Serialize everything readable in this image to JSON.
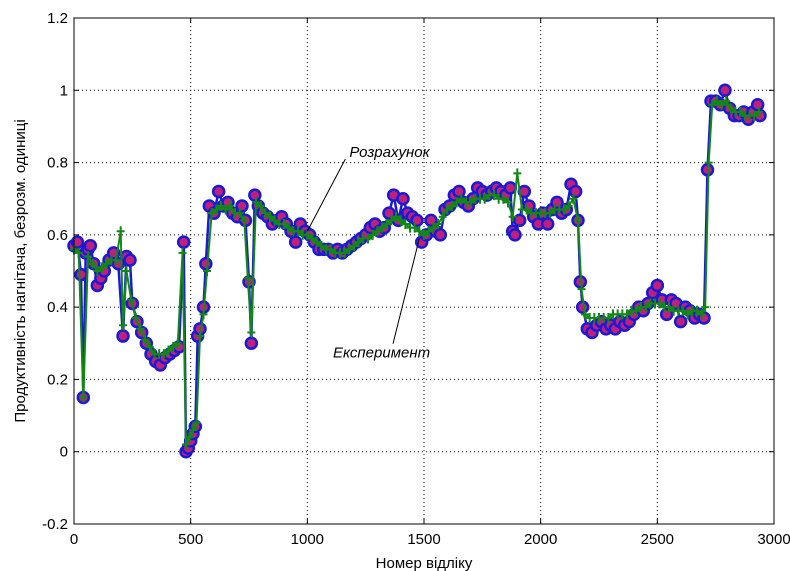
{
  "chart_data": {
    "type": "line",
    "title": "",
    "xlabel": "Номер відліку",
    "ylabel": "Продуктивність нагнітача, безрозм. одиниці",
    "xlim": [
      0,
      3000
    ],
    "ylim": [
      -0.2,
      1.2
    ],
    "grid": true,
    "x_ticks": [
      "0",
      "500",
      "1000",
      "1500",
      "2000",
      "2500",
      "3000"
    ],
    "y_ticks": [
      "-0.2",
      "0",
      "0.2",
      "0.4",
      "0.6",
      "0.8",
      "1",
      "1.2"
    ],
    "x_tick_values": [
      0,
      500,
      1000,
      1500,
      2000,
      2500,
      3000
    ],
    "y_tick_values": [
      -0.2,
      0,
      0.2,
      0.4,
      0.6,
      0.8,
      1.0,
      1.2
    ],
    "annotations": [
      {
        "text": "Розрахунок",
        "x": 1180,
        "y": 0.815,
        "arrow_to_x": 1000,
        "arrow_to_y": 0.61
      },
      {
        "text": "Експеримент",
        "x": 1110,
        "y": 0.26,
        "arrow_to_x": 1480,
        "arrow_to_y": 0.59
      }
    ],
    "series": [
      {
        "name": "Розрахунок",
        "color": "#1a1ad6",
        "marker": "o",
        "points": [
          [
            0,
            0.57
          ],
          [
            15,
            0.58
          ],
          [
            30,
            0.49
          ],
          [
            40,
            0.15
          ],
          [
            50,
            0.55
          ],
          [
            60,
            0.56
          ],
          [
            70,
            0.57
          ],
          [
            85,
            0.52
          ],
          [
            100,
            0.46
          ],
          [
            115,
            0.48
          ],
          [
            130,
            0.5
          ],
          [
            150,
            0.53
          ],
          [
            170,
            0.55
          ],
          [
            190,
            0.52
          ],
          [
            210,
            0.32
          ],
          [
            225,
            0.54
          ],
          [
            240,
            0.53
          ],
          [
            250,
            0.41
          ],
          [
            270,
            0.36
          ],
          [
            290,
            0.33
          ],
          [
            310,
            0.3
          ],
          [
            330,
            0.27
          ],
          [
            350,
            0.25
          ],
          [
            370,
            0.24
          ],
          [
            390,
            0.26
          ],
          [
            410,
            0.27
          ],
          [
            430,
            0.28
          ],
          [
            450,
            0.29
          ],
          [
            470,
            0.58
          ],
          [
            480,
            0.0
          ],
          [
            490,
            0.01
          ],
          [
            500,
            0.03
          ],
          [
            510,
            0.05
          ],
          [
            520,
            0.07
          ],
          [
            530,
            0.32
          ],
          [
            540,
            0.34
          ],
          [
            555,
            0.4
          ],
          [
            565,
            0.52
          ],
          [
            580,
            0.68
          ],
          [
            600,
            0.66
          ],
          [
            620,
            0.72
          ],
          [
            640,
            0.68
          ],
          [
            660,
            0.69
          ],
          [
            680,
            0.66
          ],
          [
            700,
            0.65
          ],
          [
            720,
            0.68
          ],
          [
            735,
            0.64
          ],
          [
            750,
            0.47
          ],
          [
            760,
            0.3
          ],
          [
            775,
            0.71
          ],
          [
            790,
            0.68
          ],
          [
            810,
            0.66
          ],
          [
            830,
            0.65
          ],
          [
            850,
            0.63
          ],
          [
            870,
            0.64
          ],
          [
            890,
            0.65
          ],
          [
            910,
            0.63
          ],
          [
            930,
            0.61
          ],
          [
            950,
            0.58
          ],
          [
            970,
            0.63
          ],
          [
            990,
            0.61
          ],
          [
            1010,
            0.6
          ],
          [
            1030,
            0.58
          ],
          [
            1050,
            0.56
          ],
          [
            1070,
            0.56
          ],
          [
            1090,
            0.56
          ],
          [
            1110,
            0.55
          ],
          [
            1130,
            0.56
          ],
          [
            1150,
            0.55
          ],
          [
            1170,
            0.56
          ],
          [
            1190,
            0.57
          ],
          [
            1210,
            0.58
          ],
          [
            1230,
            0.59
          ],
          [
            1250,
            0.6
          ],
          [
            1270,
            0.62
          ],
          [
            1290,
            0.63
          ],
          [
            1310,
            0.61
          ],
          [
            1330,
            0.62
          ],
          [
            1350,
            0.66
          ],
          [
            1370,
            0.71
          ],
          [
            1390,
            0.64
          ],
          [
            1410,
            0.7
          ],
          [
            1430,
            0.66
          ],
          [
            1450,
            0.65
          ],
          [
            1470,
            0.64
          ],
          [
            1490,
            0.58
          ],
          [
            1510,
            0.6
          ],
          [
            1530,
            0.64
          ],
          [
            1550,
            0.61
          ],
          [
            1570,
            0.6
          ],
          [
            1590,
            0.67
          ],
          [
            1610,
            0.68
          ],
          [
            1630,
            0.71
          ],
          [
            1650,
            0.72
          ],
          [
            1670,
            0.69
          ],
          [
            1690,
            0.68
          ],
          [
            1710,
            0.7
          ],
          [
            1730,
            0.73
          ],
          [
            1750,
            0.72
          ],
          [
            1770,
            0.71
          ],
          [
            1790,
            0.72
          ],
          [
            1810,
            0.73
          ],
          [
            1830,
            0.72
          ],
          [
            1850,
            0.71
          ],
          [
            1870,
            0.73
          ],
          [
            1880,
            0.61
          ],
          [
            1890,
            0.6
          ],
          [
            1910,
            0.64
          ],
          [
            1930,
            0.72
          ],
          [
            1950,
            0.68
          ],
          [
            1970,
            0.65
          ],
          [
            1990,
            0.63
          ],
          [
            2010,
            0.66
          ],
          [
            2030,
            0.63
          ],
          [
            2050,
            0.67
          ],
          [
            2070,
            0.69
          ],
          [
            2090,
            0.66
          ],
          [
            2110,
            0.67
          ],
          [
            2130,
            0.74
          ],
          [
            2150,
            0.72
          ],
          [
            2160,
            0.64
          ],
          [
            2170,
            0.47
          ],
          [
            2180,
            0.4
          ],
          [
            2200,
            0.34
          ],
          [
            2220,
            0.33
          ],
          [
            2240,
            0.35
          ],
          [
            2260,
            0.36
          ],
          [
            2280,
            0.34
          ],
          [
            2300,
            0.35
          ],
          [
            2320,
            0.34
          ],
          [
            2340,
            0.36
          ],
          [
            2360,
            0.35
          ],
          [
            2380,
            0.36
          ],
          [
            2400,
            0.38
          ],
          [
            2420,
            0.4
          ],
          [
            2440,
            0.39
          ],
          [
            2460,
            0.41
          ],
          [
            2480,
            0.44
          ],
          [
            2500,
            0.46
          ],
          [
            2520,
            0.42
          ],
          [
            2540,
            0.38
          ],
          [
            2560,
            0.42
          ],
          [
            2580,
            0.41
          ],
          [
            2600,
            0.36
          ],
          [
            2620,
            0.4
          ],
          [
            2640,
            0.39
          ],
          [
            2660,
            0.37
          ],
          [
            2680,
            0.38
          ],
          [
            2700,
            0.37
          ],
          [
            2715,
            0.78
          ],
          [
            2730,
            0.97
          ],
          [
            2750,
            0.97
          ],
          [
            2770,
            0.96
          ],
          [
            2790,
            1.0
          ],
          [
            2810,
            0.95
          ],
          [
            2830,
            0.93
          ],
          [
            2850,
            0.93
          ],
          [
            2870,
            0.94
          ],
          [
            2890,
            0.92
          ],
          [
            2910,
            0.94
          ],
          [
            2930,
            0.96
          ],
          [
            2940,
            0.93
          ]
        ]
      },
      {
        "name": "Експеримент",
        "color": "#138813",
        "marker": "+",
        "points": [
          [
            0,
            0.56
          ],
          [
            20,
            0.55
          ],
          [
            40,
            0.15
          ],
          [
            60,
            0.54
          ],
          [
            80,
            0.52
          ],
          [
            100,
            0.5
          ],
          [
            120,
            0.51
          ],
          [
            140,
            0.52
          ],
          [
            160,
            0.53
          ],
          [
            180,
            0.53
          ],
          [
            200,
            0.61
          ],
          [
            210,
            0.35
          ],
          [
            225,
            0.5
          ],
          [
            245,
            0.42
          ],
          [
            265,
            0.37
          ],
          [
            285,
            0.34
          ],
          [
            305,
            0.31
          ],
          [
            325,
            0.29
          ],
          [
            345,
            0.27
          ],
          [
            365,
            0.27
          ],
          [
            385,
            0.27
          ],
          [
            405,
            0.28
          ],
          [
            425,
            0.29
          ],
          [
            445,
            0.3
          ],
          [
            465,
            0.55
          ],
          [
            480,
            0.02
          ],
          [
            495,
            0.04
          ],
          [
            510,
            0.06
          ],
          [
            525,
            0.08
          ],
          [
            540,
            0.32
          ],
          [
            555,
            0.38
          ],
          [
            570,
            0.5
          ],
          [
            590,
            0.66
          ],
          [
            610,
            0.67
          ],
          [
            630,
            0.68
          ],
          [
            650,
            0.67
          ],
          [
            670,
            0.68
          ],
          [
            690,
            0.66
          ],
          [
            710,
            0.66
          ],
          [
            730,
            0.64
          ],
          [
            745,
            0.48
          ],
          [
            760,
            0.33
          ],
          [
            780,
            0.69
          ],
          [
            800,
            0.68
          ],
          [
            820,
            0.66
          ],
          [
            840,
            0.65
          ],
          [
            860,
            0.64
          ],
          [
            880,
            0.63
          ],
          [
            900,
            0.63
          ],
          [
            920,
            0.62
          ],
          [
            940,
            0.61
          ],
          [
            960,
            0.61
          ],
          [
            980,
            0.6
          ],
          [
            1000,
            0.6
          ],
          [
            1020,
            0.59
          ],
          [
            1040,
            0.58
          ],
          [
            1060,
            0.57
          ],
          [
            1080,
            0.56
          ],
          [
            1100,
            0.56
          ],
          [
            1120,
            0.55
          ],
          [
            1140,
            0.55
          ],
          [
            1160,
            0.55
          ],
          [
            1180,
            0.56
          ],
          [
            1200,
            0.57
          ],
          [
            1220,
            0.58
          ],
          [
            1240,
            0.59
          ],
          [
            1260,
            0.59
          ],
          [
            1280,
            0.6
          ],
          [
            1300,
            0.61
          ],
          [
            1320,
            0.62
          ],
          [
            1340,
            0.63
          ],
          [
            1360,
            0.64
          ],
          [
            1380,
            0.65
          ],
          [
            1400,
            0.64
          ],
          [
            1420,
            0.63
          ],
          [
            1440,
            0.62
          ],
          [
            1460,
            0.62
          ],
          [
            1480,
            0.61
          ],
          [
            1500,
            0.6
          ],
          [
            1520,
            0.61
          ],
          [
            1540,
            0.62
          ],
          [
            1560,
            0.63
          ],
          [
            1580,
            0.65
          ],
          [
            1600,
            0.67
          ],
          [
            1620,
            0.68
          ],
          [
            1640,
            0.69
          ],
          [
            1660,
            0.7
          ],
          [
            1680,
            0.69
          ],
          [
            1700,
            0.69
          ],
          [
            1720,
            0.7
          ],
          [
            1740,
            0.7
          ],
          [
            1760,
            0.7
          ],
          [
            1780,
            0.71
          ],
          [
            1800,
            0.71
          ],
          [
            1820,
            0.7
          ],
          [
            1840,
            0.7
          ],
          [
            1860,
            0.69
          ],
          [
            1880,
            0.65
          ],
          [
            1900,
            0.77
          ],
          [
            1920,
            0.67
          ],
          [
            1940,
            0.67
          ],
          [
            1960,
            0.66
          ],
          [
            1980,
            0.66
          ],
          [
            2000,
            0.66
          ],
          [
            2020,
            0.66
          ],
          [
            2040,
            0.66
          ],
          [
            2060,
            0.67
          ],
          [
            2080,
            0.67
          ],
          [
            2100,
            0.67
          ],
          [
            2120,
            0.68
          ],
          [
            2140,
            0.7
          ],
          [
            2160,
            0.64
          ],
          [
            2175,
            0.45
          ],
          [
            2190,
            0.38
          ],
          [
            2210,
            0.37
          ],
          [
            2230,
            0.37
          ],
          [
            2250,
            0.37
          ],
          [
            2270,
            0.37
          ],
          [
            2290,
            0.37
          ],
          [
            2310,
            0.38
          ],
          [
            2330,
            0.38
          ],
          [
            2350,
            0.38
          ],
          [
            2370,
            0.38
          ],
          [
            2390,
            0.39
          ],
          [
            2410,
            0.39
          ],
          [
            2430,
            0.4
          ],
          [
            2450,
            0.4
          ],
          [
            2470,
            0.41
          ],
          [
            2490,
            0.41
          ],
          [
            2510,
            0.41
          ],
          [
            2530,
            0.4
          ],
          [
            2550,
            0.4
          ],
          [
            2570,
            0.39
          ],
          [
            2590,
            0.39
          ],
          [
            2610,
            0.39
          ],
          [
            2630,
            0.38
          ],
          [
            2650,
            0.39
          ],
          [
            2670,
            0.39
          ],
          [
            2690,
            0.38
          ],
          [
            2705,
            0.4
          ],
          [
            2720,
            0.8
          ],
          [
            2735,
            0.96
          ],
          [
            2755,
            0.97
          ],
          [
            2775,
            0.96
          ],
          [
            2795,
            0.97
          ],
          [
            2815,
            0.95
          ],
          [
            2835,
            0.94
          ],
          [
            2855,
            0.94
          ],
          [
            2875,
            0.93
          ],
          [
            2895,
            0.93
          ],
          [
            2915,
            0.93
          ],
          [
            2935,
            0.94
          ]
        ]
      }
    ]
  }
}
